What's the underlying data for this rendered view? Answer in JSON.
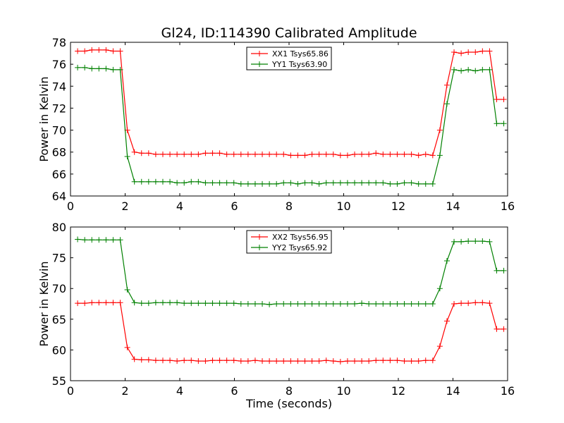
{
  "title": "Gl24, ID:114390 Calibrated Amplitude",
  "chart_data": [
    {
      "type": "line",
      "ylabel": "Power in Kelvin",
      "xlabel": "",
      "xlim": [
        0,
        16
      ],
      "ylim": [
        64,
        78
      ],
      "xticks": [
        0,
        2,
        4,
        6,
        8,
        10,
        12,
        14,
        16
      ],
      "yticks": [
        64,
        66,
        68,
        70,
        72,
        74,
        76,
        78
      ],
      "legend_position": "top-center",
      "x": [
        0.26,
        0.52,
        0.78,
        1.04,
        1.3,
        1.56,
        1.82,
        2.08,
        2.34,
        2.6,
        2.86,
        3.12,
        3.38,
        3.64,
        3.9,
        4.16,
        4.42,
        4.68,
        4.94,
        5.2,
        5.46,
        5.72,
        5.98,
        6.24,
        6.5,
        6.76,
        7.02,
        7.28,
        7.54,
        7.8,
        8.06,
        8.32,
        8.58,
        8.84,
        9.1,
        9.36,
        9.62,
        9.88,
        10.14,
        10.4,
        10.66,
        10.92,
        11.18,
        11.44,
        11.7,
        11.96,
        12.22,
        12.48,
        12.74,
        13.0,
        13.26,
        13.52,
        13.78,
        14.04,
        14.3,
        14.56,
        14.82,
        15.08,
        15.34,
        15.6,
        15.86
      ],
      "series": [
        {
          "name": "XX1 Tsys65.86",
          "color": "#ff0000",
          "values": [
            77.2,
            77.2,
            77.3,
            77.3,
            77.3,
            77.2,
            77.2,
            70.0,
            68.0,
            67.9,
            67.9,
            67.8,
            67.8,
            67.8,
            67.8,
            67.8,
            67.8,
            67.8,
            67.9,
            67.9,
            67.9,
            67.8,
            67.8,
            67.8,
            67.8,
            67.8,
            67.8,
            67.8,
            67.8,
            67.8,
            67.7,
            67.7,
            67.7,
            67.8,
            67.8,
            67.8,
            67.8,
            67.7,
            67.7,
            67.8,
            67.8,
            67.8,
            67.9,
            67.8,
            67.8,
            67.8,
            67.8,
            67.8,
            67.7,
            67.8,
            67.7,
            70.0,
            74.1,
            77.1,
            77.0,
            77.1,
            77.1,
            77.2,
            77.2,
            72.8,
            72.8
          ]
        },
        {
          "name": "YY1 Tsys63.90",
          "color": "#008000",
          "values": [
            75.7,
            75.7,
            75.6,
            75.6,
            75.6,
            75.5,
            75.5,
            67.6,
            65.3,
            65.3,
            65.3,
            65.3,
            65.3,
            65.3,
            65.2,
            65.2,
            65.3,
            65.3,
            65.2,
            65.2,
            65.2,
            65.2,
            65.2,
            65.1,
            65.1,
            65.1,
            65.1,
            65.1,
            65.1,
            65.2,
            65.2,
            65.1,
            65.2,
            65.2,
            65.1,
            65.2,
            65.2,
            65.2,
            65.2,
            65.2,
            65.2,
            65.2,
            65.2,
            65.2,
            65.1,
            65.1,
            65.2,
            65.2,
            65.1,
            65.1,
            65.1,
            67.7,
            72.4,
            75.5,
            75.4,
            75.5,
            75.4,
            75.5,
            75.5,
            70.6,
            70.6
          ]
        }
      ]
    },
    {
      "type": "line",
      "ylabel": "Power in Kelvin",
      "xlabel": "Time (seconds)",
      "xlim": [
        0,
        16
      ],
      "ylim": [
        55,
        80
      ],
      "xticks": [
        0,
        2,
        4,
        6,
        8,
        10,
        12,
        14,
        16
      ],
      "yticks": [
        55,
        60,
        65,
        70,
        75,
        80
      ],
      "legend_position": "top-center",
      "x": [
        0.26,
        0.52,
        0.78,
        1.04,
        1.3,
        1.56,
        1.82,
        2.08,
        2.34,
        2.6,
        2.86,
        3.12,
        3.38,
        3.64,
        3.9,
        4.16,
        4.42,
        4.68,
        4.94,
        5.2,
        5.46,
        5.72,
        5.98,
        6.24,
        6.5,
        6.76,
        7.02,
        7.28,
        7.54,
        7.8,
        8.06,
        8.32,
        8.58,
        8.84,
        9.1,
        9.36,
        9.62,
        9.88,
        10.14,
        10.4,
        10.66,
        10.92,
        11.18,
        11.44,
        11.7,
        11.96,
        12.22,
        12.48,
        12.74,
        13.0,
        13.26,
        13.52,
        13.78,
        14.04,
        14.3,
        14.56,
        14.82,
        15.08,
        15.34,
        15.6,
        15.86
      ],
      "series": [
        {
          "name": "XX2 Tsys56.95",
          "color": "#ff0000",
          "values": [
            67.6,
            67.6,
            67.7,
            67.7,
            67.7,
            67.7,
            67.7,
            60.4,
            58.5,
            58.4,
            58.4,
            58.3,
            58.3,
            58.3,
            58.2,
            58.3,
            58.3,
            58.2,
            58.2,
            58.3,
            58.3,
            58.3,
            58.3,
            58.2,
            58.2,
            58.3,
            58.2,
            58.2,
            58.2,
            58.2,
            58.2,
            58.2,
            58.2,
            58.2,
            58.2,
            58.3,
            58.2,
            58.1,
            58.2,
            58.2,
            58.2,
            58.2,
            58.3,
            58.3,
            58.3,
            58.3,
            58.2,
            58.2,
            58.2,
            58.3,
            58.3,
            60.6,
            64.7,
            67.5,
            67.6,
            67.6,
            67.7,
            67.7,
            67.6,
            63.4,
            63.4
          ]
        },
        {
          "name": "YY2 Tsys65.92",
          "color": "#008000",
          "values": [
            78.0,
            77.9,
            77.9,
            77.9,
            77.9,
            77.9,
            77.9,
            69.8,
            67.7,
            67.6,
            67.6,
            67.7,
            67.7,
            67.7,
            67.7,
            67.6,
            67.6,
            67.6,
            67.6,
            67.6,
            67.6,
            67.6,
            67.6,
            67.5,
            67.5,
            67.5,
            67.5,
            67.4,
            67.5,
            67.5,
            67.5,
            67.5,
            67.5,
            67.5,
            67.5,
            67.5,
            67.5,
            67.5,
            67.5,
            67.5,
            67.6,
            67.5,
            67.5,
            67.5,
            67.5,
            67.5,
            67.5,
            67.5,
            67.5,
            67.5,
            67.5,
            70.0,
            74.5,
            77.6,
            77.6,
            77.7,
            77.7,
            77.7,
            77.6,
            72.9,
            72.9
          ]
        }
      ]
    }
  ]
}
